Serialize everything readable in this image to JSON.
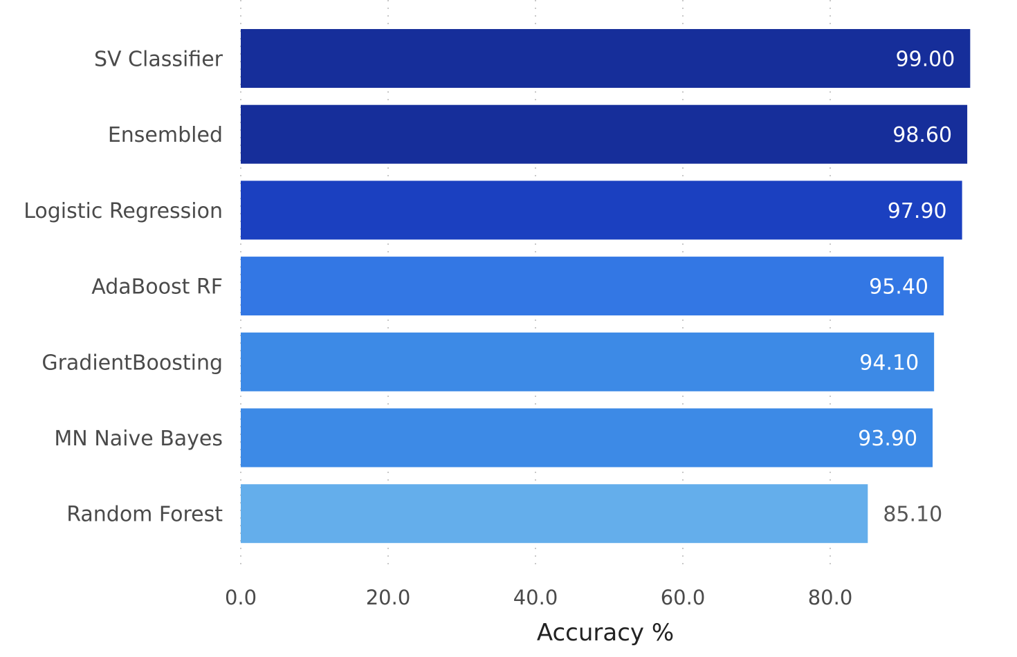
{
  "chart_data": {
    "type": "bar",
    "orientation": "horizontal",
    "categories": [
      "SV Classifier",
      "Ensembled",
      "Logistic Regression",
      "AdaBoost RF",
      "GradientBoosting",
      "MN Naive Bayes",
      "Random Forest"
    ],
    "values": [
      99.0,
      98.6,
      97.9,
      95.4,
      94.1,
      93.9,
      85.1
    ],
    "value_labels": [
      "99.00",
      "98.60",
      "97.90",
      "95.40",
      "94.10",
      "93.90",
      "85.10"
    ],
    "bar_colors": [
      "#162e9a",
      "#162e9a",
      "#1b40c0",
      "#3377e4",
      "#3d8ae6",
      "#3d8ae6",
      "#64aeeb"
    ],
    "value_label_colors": [
      "#ffffff",
      "#ffffff",
      "#ffffff",
      "#ffffff",
      "#ffffff",
      "#ffffff",
      "#555555"
    ],
    "title": "",
    "xlabel": "Accuracy %",
    "ylabel": "",
    "xlim": [
      0,
      99
    ],
    "xticks": [
      0,
      20,
      40,
      60,
      80
    ],
    "xtick_labels": [
      "0.0",
      "20.0",
      "40.0",
      "60.0",
      "80.0"
    ],
    "grid": "vertical dotted",
    "legend": "none"
  }
}
